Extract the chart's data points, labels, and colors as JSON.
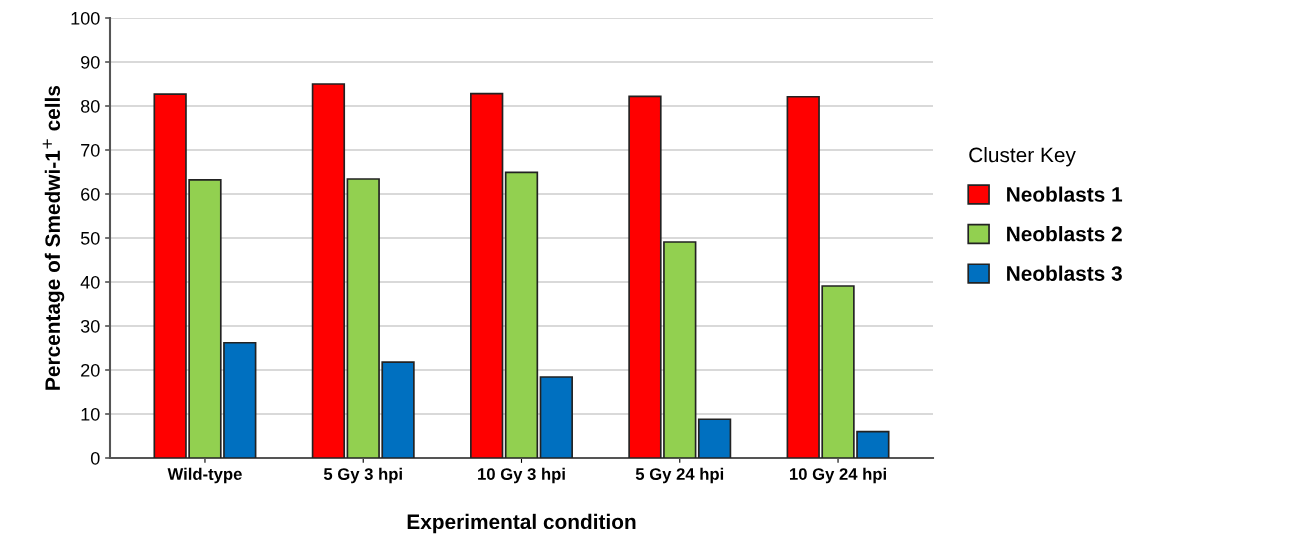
{
  "chart_data": {
    "type": "bar",
    "xlabel": "Experimental condition",
    "ylabel": "Percentage of Smedwi-1$^{+}$ cells",
    "legend_title": "Cluster Key",
    "categories": [
      "Wild-type",
      "5 Gy 3 hpi",
      "10 Gy 3 hpi",
      "5 Gy 24 hpi",
      "10 Gy 24 hpi"
    ],
    "series": [
      {
        "name": "Neoblasts 1",
        "color": "#ff0000",
        "values": [
          82.7,
          85.0,
          82.8,
          82.2,
          82.1
        ]
      },
      {
        "name": "Neoblasts 2",
        "color": "#92d050",
        "values": [
          63.2,
          63.4,
          64.9,
          49.1,
          39.1
        ]
      },
      {
        "name": "Neoblasts 3",
        "color": "#0070c0",
        "values": [
          26.2,
          21.8,
          18.4,
          8.8,
          6.0
        ]
      }
    ],
    "ylim": [
      0,
      100
    ],
    "yticks": [
      0,
      10,
      20,
      30,
      40,
      50,
      60,
      70,
      80,
      90,
      100
    ],
    "grid": "y",
    "legend": "right"
  }
}
